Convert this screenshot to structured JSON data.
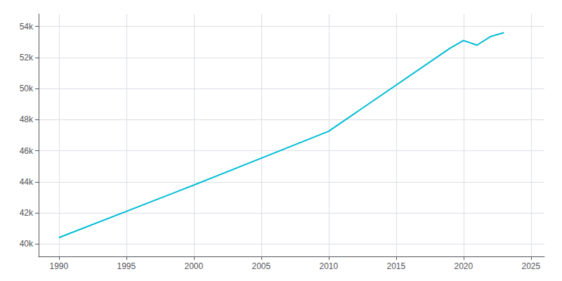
{
  "chart_data": {
    "type": "line",
    "x": [
      1990,
      2000,
      2010,
      2019,
      2020,
      2021,
      2022,
      2023
    ],
    "values": [
      40407,
      43789,
      47255,
      52600,
      53100,
      52800,
      53350,
      53600
    ],
    "color": "#00bcd4",
    "xlim": [
      1988.5,
      2026
    ],
    "ylim": [
      39200,
      54800
    ],
    "xticks": [
      1990,
      1995,
      2000,
      2005,
      2010,
      2015,
      2020,
      2025
    ],
    "yticks": [
      {
        "value": 40000,
        "label": "40k"
      },
      {
        "value": 42000,
        "label": "42k"
      },
      {
        "value": 44000,
        "label": "44k"
      },
      {
        "value": 46000,
        "label": "46k"
      },
      {
        "value": 48000,
        "label": "48k"
      },
      {
        "value": 50000,
        "label": "50k"
      },
      {
        "value": 52000,
        "label": "52k"
      },
      {
        "value": 54000,
        "label": "54k"
      }
    ],
    "grid": true
  }
}
